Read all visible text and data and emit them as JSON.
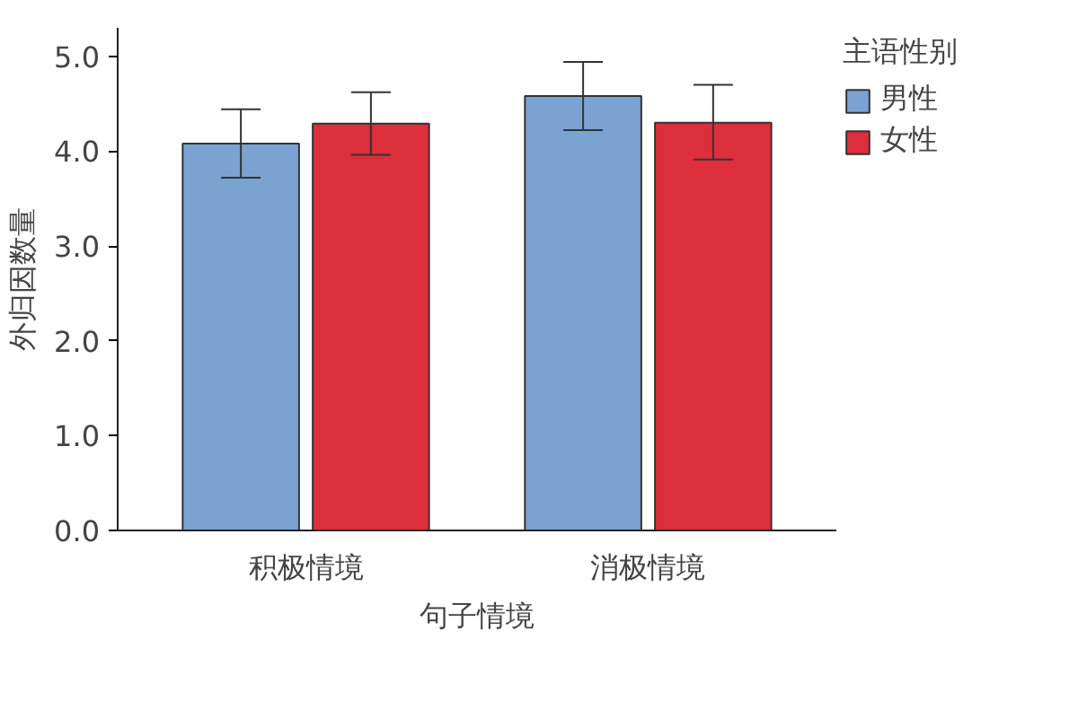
{
  "chart_data": {
    "type": "bar",
    "xlabel": "句子情境",
    "ylabel": "外归因数量",
    "legend_title": "主语性别",
    "categories": [
      "积极情境",
      "消极情境"
    ],
    "series": [
      {
        "name": "男性",
        "color": "#7ba3d2",
        "values": [
          4.08,
          4.58
        ],
        "errors": [
          [
            3.72,
            4.44
          ],
          [
            4.22,
            4.94
          ]
        ]
      },
      {
        "name": "女性",
        "color": "#dd2e3b",
        "values": [
          4.29,
          4.3
        ],
        "errors": [
          [
            3.96,
            4.62
          ],
          [
            3.91,
            4.7
          ]
        ]
      }
    ],
    "ylim": [
      0,
      5.3
    ],
    "yticks": [
      {
        "value": 0,
        "label": "0.0"
      },
      {
        "value": 1,
        "label": "1.0"
      },
      {
        "value": 2,
        "label": "2.0"
      },
      {
        "value": 3,
        "label": "3.0"
      },
      {
        "value": 4,
        "label": "4.0"
      },
      {
        "value": 5,
        "label": "5.0"
      }
    ],
    "grid": false,
    "legend": "top right"
  }
}
